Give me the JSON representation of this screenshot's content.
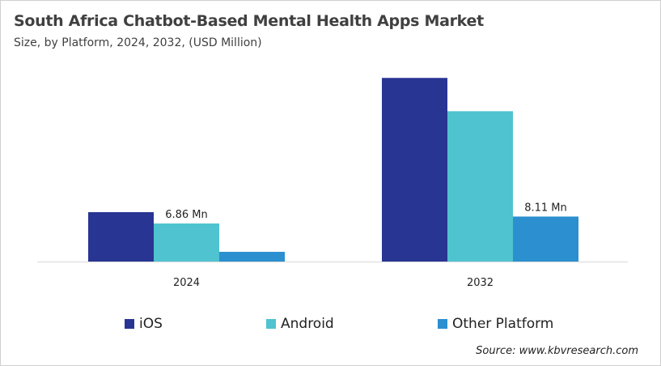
{
  "chart_data": {
    "type": "bar",
    "title": "South Africa Chatbot-Based Mental Health Apps Market",
    "subtitle": "Size, by Platform, 2024, 2032, (USD Million)",
    "categories": [
      "2024",
      "2032"
    ],
    "series": [
      {
        "name": "iOS",
        "color": "#283593",
        "values": [
          8.9,
          33.1
        ]
      },
      {
        "name": "Android",
        "color": "#4fc3cf",
        "values": [
          6.86,
          27.1
        ]
      },
      {
        "name": "Other Platform",
        "color": "#2b8fd0",
        "values": [
          1.75,
          8.11
        ]
      }
    ],
    "data_labels": [
      {
        "category": "2024",
        "series": "Android",
        "text": "6.86 Mn"
      },
      {
        "category": "2032",
        "series": "Other Platform",
        "text": "8.11 Mn"
      }
    ],
    "ylim": [
      0,
      40
    ],
    "grid": false,
    "legend": "bottom",
    "source": "Source: www.kbvresearch.com"
  }
}
